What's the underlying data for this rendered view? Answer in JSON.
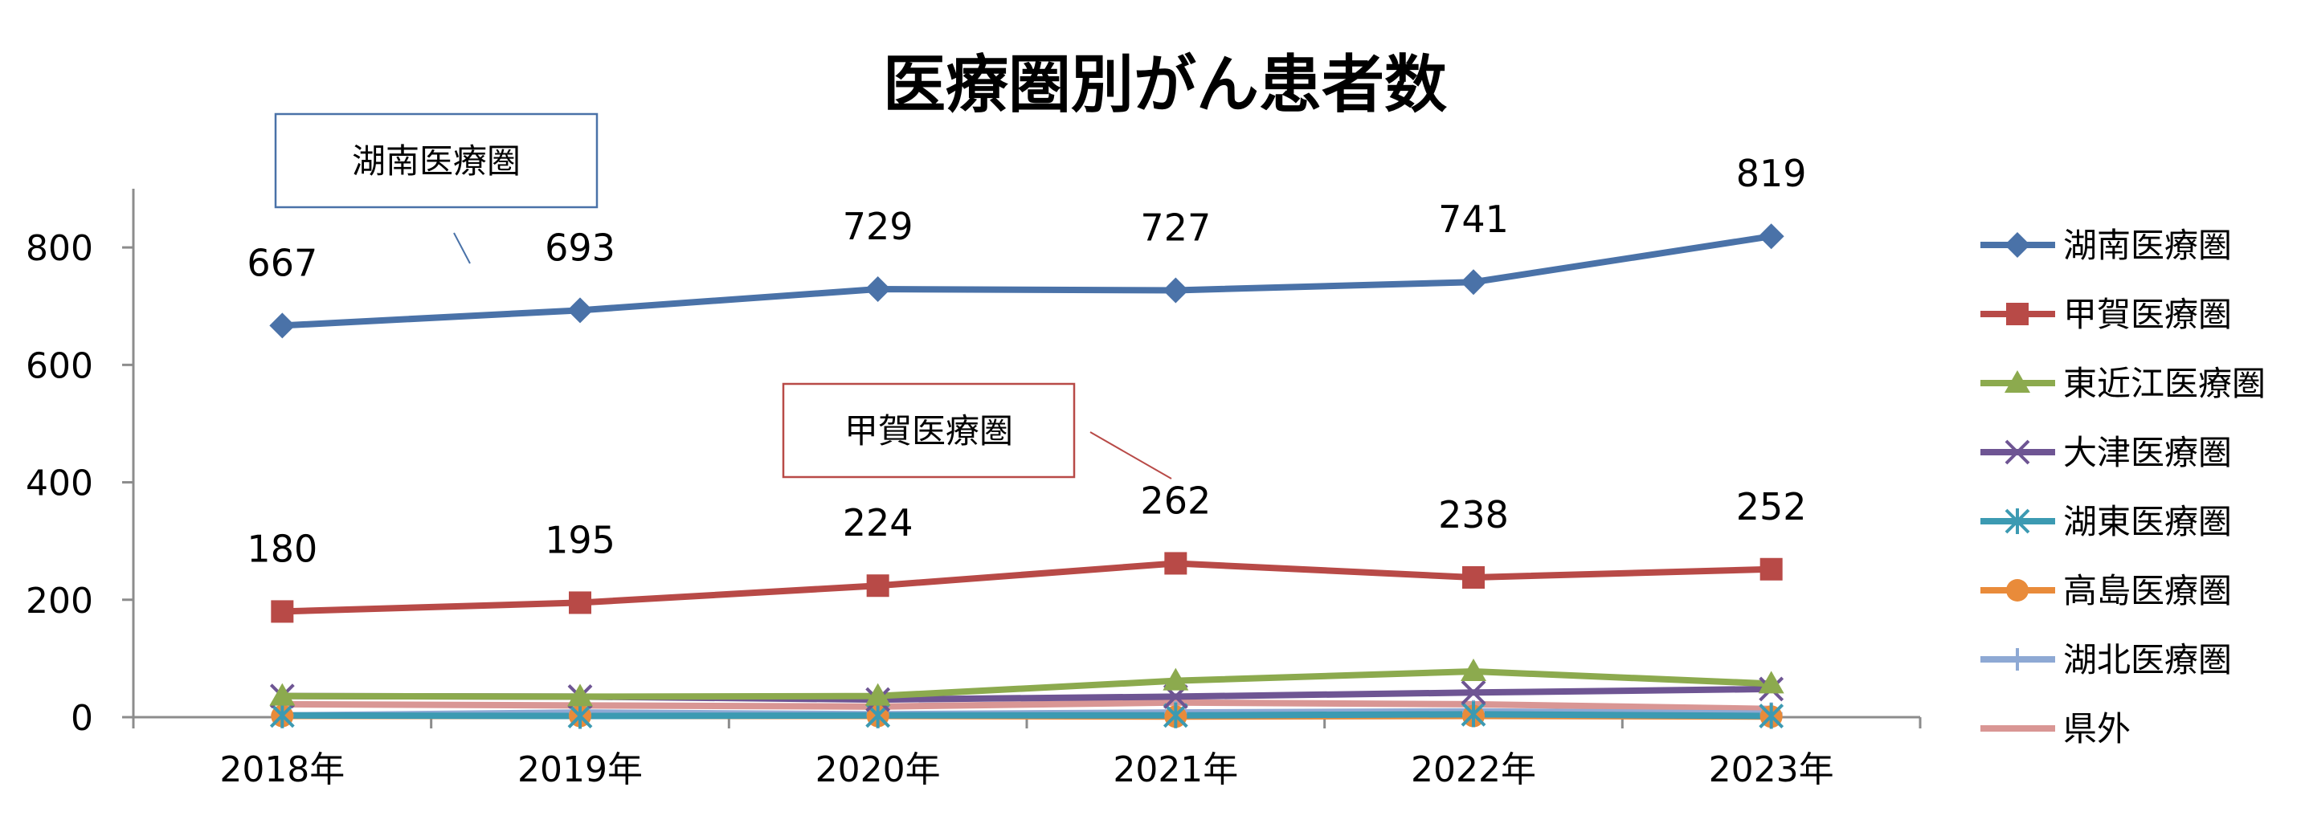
{
  "chart_data": {
    "type": "line",
    "title": "医療圏別がん患者数",
    "xlabel": "",
    "ylabel": "",
    "categories": [
      "2018年",
      "2019年",
      "2020年",
      "2021年",
      "2022年",
      "2023年"
    ],
    "ylim": [
      0,
      900
    ],
    "yticks": [
      0,
      200,
      400,
      600,
      800
    ],
    "grid": false,
    "legend_position": "right",
    "series": [
      {
        "name": "湖南医療圏",
        "values": [
          667,
          693,
          729,
          727,
          741,
          819
        ],
        "color": "#4A72A8",
        "marker": "diamond",
        "labels_shown": true
      },
      {
        "name": "甲賀医療圏",
        "values": [
          180,
          195,
          224,
          262,
          238,
          252
        ],
        "color": "#B84A47",
        "marker": "square",
        "labels_shown": true
      },
      {
        "name": "東近江医療圏",
        "values": [
          36,
          35,
          36,
          62,
          78,
          57
        ],
        "color": "#8CAA4E",
        "marker": "triangle",
        "labels_shown": false
      },
      {
        "name": "大津医療圏",
        "values": [
          36,
          35,
          30,
          35,
          42,
          48
        ],
        "color": "#6E5593",
        "marker": "x",
        "labels_shown": false
      },
      {
        "name": "湖東医療圏",
        "values": [
          3,
          2,
          3,
          3,
          5,
          2
        ],
        "color": "#3C9AB2",
        "marker": "star",
        "labels_shown": false
      },
      {
        "name": "高島医療圏",
        "values": [
          2,
          2,
          2,
          1,
          2,
          1
        ],
        "color": "#E98B3A",
        "marker": "circle",
        "labels_shown": false
      },
      {
        "name": "湖北医療圏",
        "values": [
          3,
          8,
          5,
          8,
          10,
          6
        ],
        "color": "#8EA9D4",
        "marker": "plus",
        "labels_shown": false
      },
      {
        "name": "県外",
        "values": [
          22,
          20,
          18,
          25,
          22,
          14
        ],
        "color": "#D99694",
        "marker": "none",
        "labels_shown": false
      }
    ],
    "callouts": [
      {
        "text": "湖南医療圏",
        "series": "湖南医療圏",
        "border_color": "#4A72A8"
      },
      {
        "text": "甲賀医療圏",
        "series": "甲賀医療圏",
        "border_color": "#B84A47"
      }
    ]
  }
}
